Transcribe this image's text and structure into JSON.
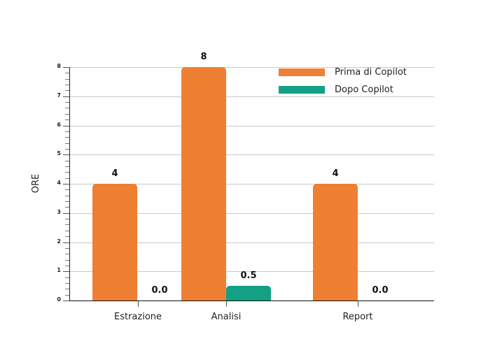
{
  "chart_data": {
    "type": "bar",
    "title": "",
    "xlabel": "",
    "ylabel": "ORE",
    "ylim": [
      0,
      8
    ],
    "yticks": [
      0,
      1,
      2,
      3,
      4,
      5,
      6,
      7,
      8
    ],
    "grid": true,
    "legend_position": "top-right",
    "categories": [
      "Estrazione",
      "Analisi",
      "Report"
    ],
    "series": [
      {
        "name": "Prima di Copilot",
        "color": "#ef7f33",
        "values": [
          4,
          8,
          4
        ],
        "labels": [
          "4",
          "8",
          "4"
        ]
      },
      {
        "name": "Dopo Copilot",
        "color": "#13a085",
        "values": [
          0.0,
          0.5,
          0.0
        ],
        "labels": [
          "0.0",
          "0.5",
          "0.0"
        ]
      }
    ]
  }
}
